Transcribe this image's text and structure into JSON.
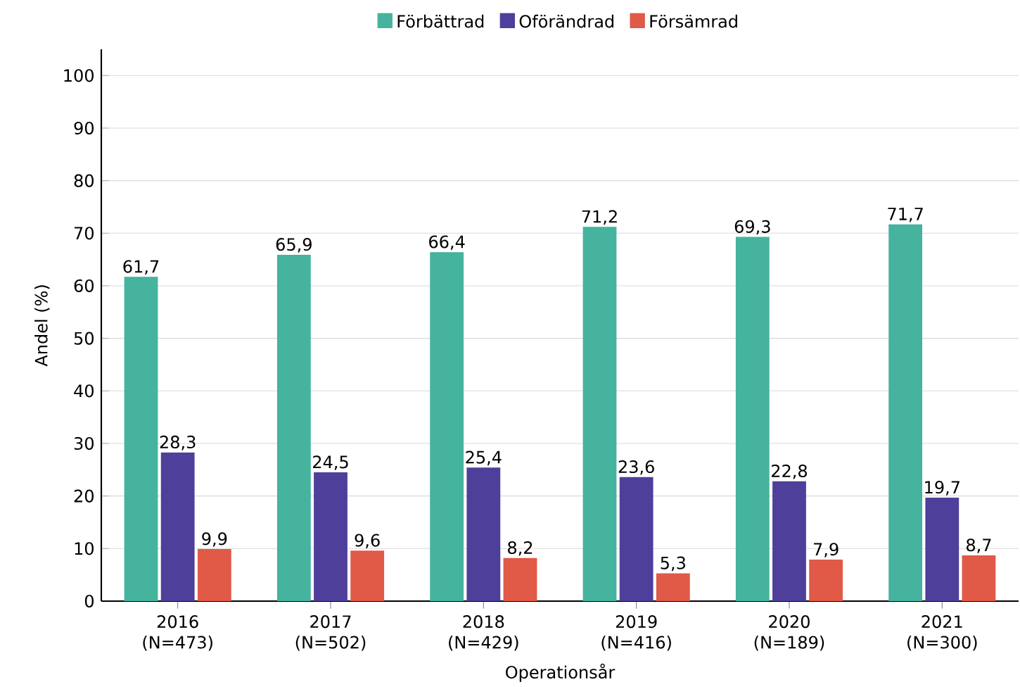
{
  "chart_data": {
    "type": "bar",
    "xlabel": "Operationsår",
    "ylabel": "Andel (%)",
    "categories": [
      "2016 (N=473)",
      "2017 (N=502)",
      "2018 (N=429)",
      "2019 (N=416)",
      "2020 (N=189)",
      "2021 (N=300)"
    ],
    "series": [
      {
        "name": "Förbättrad",
        "color": "#45b39d",
        "values": [
          61.7,
          65.9,
          66.4,
          71.2,
          69.3,
          71.7
        ],
        "value_labels": [
          "61,7",
          "65,9",
          "66,4",
          "71,2",
          "69,3",
          "71,7"
        ]
      },
      {
        "name": "Oförändrad",
        "color": "#4e3f9a",
        "values": [
          28.3,
          24.5,
          25.4,
          23.6,
          22.8,
          19.7
        ],
        "value_labels": [
          "28,3",
          "24,5",
          "25,4",
          "23,6",
          "22,8",
          "19,7"
        ]
      },
      {
        "name": "Försämrad",
        "color": "#e05a47",
        "values": [
          9.9,
          9.6,
          8.2,
          5.3,
          7.9,
          8.7
        ],
        "value_labels": [
          "9,9",
          "9,6",
          "8,2",
          "5,3",
          "7,9",
          "8,7"
        ]
      }
    ],
    "ylim": [
      0,
      105
    ],
    "yticks": [
      0,
      10,
      20,
      30,
      40,
      50,
      60,
      70,
      80,
      90,
      100
    ],
    "grid": "y",
    "legend": "top"
  }
}
